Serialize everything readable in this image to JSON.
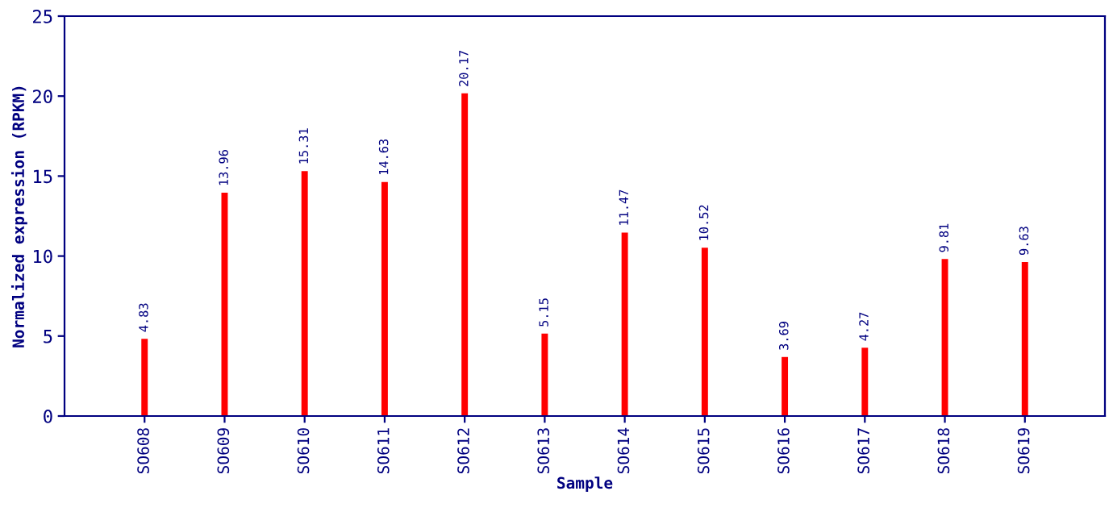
{
  "chart_data": {
    "type": "bar",
    "xlabel": "Sample",
    "ylabel": "Normalized expression (RPKM)",
    "categories": [
      "SO608",
      "SO609",
      "SO610",
      "SO611",
      "SO612",
      "SO613",
      "SO614",
      "SO615",
      "SO616",
      "SO617",
      "SO618",
      "SO619"
    ],
    "values": [
      4.83,
      13.96,
      15.31,
      14.63,
      20.17,
      5.15,
      11.47,
      10.52,
      3.69,
      4.27,
      9.81,
      9.63
    ],
    "color": "#ff0000",
    "ylim": [
      0,
      25
    ],
    "yticks": [
      0,
      5,
      10,
      15,
      20,
      25
    ],
    "data_labels": true,
    "grid": false,
    "legend": false
  }
}
